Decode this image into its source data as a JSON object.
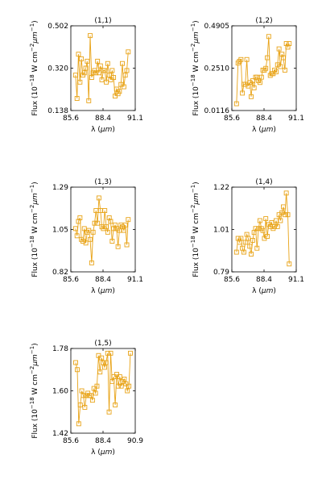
{
  "colors": {
    "series": "#e8a317",
    "axes": "#000000"
  },
  "labels": {
    "xlabel_prefix": "λ (",
    "xlabel_unit": "μm",
    "xlabel_suffix": ")",
    "ylabel_flux": "Flux (10",
    "ylabel_exp1": "−18",
    "ylabel_mid": " W cm",
    "ylabel_exp2": "−2",
    "ylabel_mu": "μm",
    "ylabel_exp3": "−1",
    "ylabel_end": ")"
  },
  "chart_data": [
    {
      "type": "line",
      "title": "(1,1)",
      "xlim": [
        85.6,
        91.1
      ],
      "ylim": [
        0.138,
        0.502
      ],
      "xticks": [
        "85.6",
        "88.4",
        "91.1"
      ],
      "yticks": [
        "0.138",
        "0.320",
        "0.502"
      ],
      "x": [
        86.0,
        86.13,
        86.25,
        86.38,
        86.5,
        86.63,
        86.75,
        86.88,
        87.0,
        87.13,
        87.25,
        87.38,
        87.5,
        87.63,
        87.75,
        87.88,
        88.0,
        88.13,
        88.25,
        88.38,
        88.5,
        88.63,
        88.75,
        88.88,
        89.0,
        89.13,
        89.25,
        89.38,
        89.5,
        89.63,
        89.75,
        89.88,
        90.0,
        90.13,
        90.25,
        90.38,
        90.5
      ],
      "y": [
        0.29,
        0.19,
        0.38,
        0.26,
        0.36,
        0.29,
        0.3,
        0.32,
        0.35,
        0.18,
        0.46,
        0.28,
        0.3,
        0.31,
        0.3,
        0.35,
        0.3,
        0.33,
        0.27,
        0.31,
        0.31,
        0.26,
        0.34,
        0.29,
        0.27,
        0.31,
        0.28,
        0.2,
        0.23,
        0.21,
        0.22,
        0.25,
        0.34,
        0.24,
        0.29,
        0.31,
        0.39
      ]
    },
    {
      "type": "line",
      "title": "(1,2)",
      "xlim": [
        85.6,
        91.1
      ],
      "ylim": [
        0.0116,
        0.4905
      ],
      "xticks": [
        "85.6",
        "88.4",
        "91.1"
      ],
      "yticks": [
        "0.0116",
        "0.2510",
        "0.4905"
      ],
      "x": [
        86.0,
        86.13,
        86.25,
        86.38,
        86.5,
        86.63,
        86.75,
        86.88,
        87.0,
        87.13,
        87.25,
        87.38,
        87.5,
        87.63,
        87.75,
        87.88,
        88.0,
        88.13,
        88.25,
        88.38,
        88.5,
        88.63,
        88.75,
        88.88,
        89.0,
        89.13,
        89.25,
        89.38,
        89.5,
        89.63,
        89.75,
        89.88,
        90.0,
        90.13,
        90.25,
        90.38,
        90.5
      ],
      "y": [
        0.05,
        0.28,
        0.29,
        0.3,
        0.11,
        0.16,
        0.16,
        0.3,
        0.15,
        0.17,
        0.09,
        0.18,
        0.14,
        0.2,
        0.2,
        0.18,
        0.17,
        0.2,
        0.24,
        0.24,
        0.25,
        0.31,
        0.43,
        0.21,
        0.22,
        0.22,
        0.24,
        0.23,
        0.27,
        0.36,
        0.26,
        0.33,
        0.31,
        0.24,
        0.39,
        0.37,
        0.39
      ]
    },
    {
      "type": "line",
      "title": "(1,3)",
      "xlim": [
        85.6,
        91.1
      ],
      "ylim": [
        0.82,
        1.29
      ],
      "xticks": [
        "85.6",
        "88.4",
        "91.1"
      ],
      "yticks": [
        "0.82",
        "1.05",
        "1.29"
      ],
      "x": [
        86.0,
        86.13,
        86.25,
        86.38,
        86.5,
        86.63,
        86.75,
        86.88,
        87.0,
        87.13,
        87.25,
        87.38,
        87.5,
        87.63,
        87.75,
        87.88,
        88.0,
        88.13,
        88.25,
        88.38,
        88.5,
        88.63,
        88.75,
        88.88,
        89.0,
        89.13,
        89.25,
        89.38,
        89.5,
        89.63,
        89.75,
        89.88,
        90.0,
        90.13,
        90.25,
        90.38,
        90.5
      ],
      "y": [
        1.06,
        1.02,
        1.1,
        1.12,
        1.0,
        0.99,
        1.06,
        0.98,
        1.04,
        1.05,
        1.0,
        0.87,
        1.04,
        1.09,
        1.16,
        1.09,
        1.23,
        1.16,
        1.07,
        1.06,
        1.16,
        1.07,
        1.04,
        1.12,
        1.1,
        0.99,
        1.06,
        1.08,
        1.06,
        0.96,
        1.05,
        1.08,
        1.07,
        1.05,
        1.08,
        0.97,
        1.11
      ]
    },
    {
      "type": "line",
      "title": "(1,4)",
      "xlim": [
        85.6,
        91.1
      ],
      "ylim": [
        0.79,
        1.22
      ],
      "xticks": [
        "85.6",
        "88.4",
        "91.1"
      ],
      "yticks": [
        "0.79",
        "1.01",
        "1.22"
      ],
      "x": [
        86.0,
        86.13,
        86.25,
        86.38,
        86.5,
        86.63,
        86.75,
        86.88,
        87.0,
        87.13,
        87.25,
        87.38,
        87.5,
        87.63,
        87.75,
        87.88,
        88.0,
        88.13,
        88.25,
        88.38,
        88.5,
        88.63,
        88.75,
        88.88,
        89.0,
        89.13,
        89.25,
        89.38,
        89.5,
        89.63,
        89.75,
        89.88,
        90.0,
        90.13,
        90.25,
        90.38,
        90.5
      ],
      "y": [
        0.89,
        0.96,
        0.94,
        0.96,
        0.91,
        0.89,
        0.94,
        0.98,
        0.96,
        0.92,
        0.88,
        0.95,
        0.99,
        1.01,
        0.91,
        1.01,
        1.05,
        1.01,
        1.0,
        0.96,
        1.06,
        0.97,
        1.03,
        1.02,
        1.04,
        1.01,
        1.02,
        1.05,
        1.02,
        1.08,
        1.05,
        1.09,
        1.12,
        1.08,
        1.19,
        1.08,
        0.83
      ]
    },
    {
      "type": "line",
      "title": "(1,5)",
      "xlim": [
        85.6,
        90.9
      ],
      "ylim": [
        1.42,
        1.78
      ],
      "xticks": [
        "85.6",
        "88.4",
        "90.9"
      ],
      "yticks": [
        "1.42",
        "1.60",
        "1.78"
      ],
      "x": [
        86.0,
        86.13,
        86.25,
        86.38,
        86.5,
        86.63,
        86.75,
        86.88,
        87.0,
        87.13,
        87.25,
        87.38,
        87.5,
        87.63,
        87.75,
        87.88,
        88.0,
        88.13,
        88.25,
        88.38,
        88.5,
        88.63,
        88.75,
        88.88,
        89.0,
        89.13,
        89.25,
        89.38,
        89.5,
        89.63,
        89.75,
        89.88,
        90.0,
        90.13,
        90.25,
        90.38,
        90.5
      ],
      "y": [
        1.72,
        1.69,
        1.46,
        1.54,
        1.6,
        1.58,
        1.53,
        1.58,
        1.59,
        1.58,
        1.58,
        1.56,
        1.61,
        1.59,
        1.62,
        1.75,
        1.68,
        1.74,
        1.72,
        1.7,
        1.72,
        1.76,
        1.51,
        1.76,
        1.64,
        1.66,
        1.54,
        1.67,
        1.62,
        1.66,
        1.62,
        1.64,
        1.65,
        1.63,
        1.6,
        1.62,
        1.76
      ]
    }
  ]
}
